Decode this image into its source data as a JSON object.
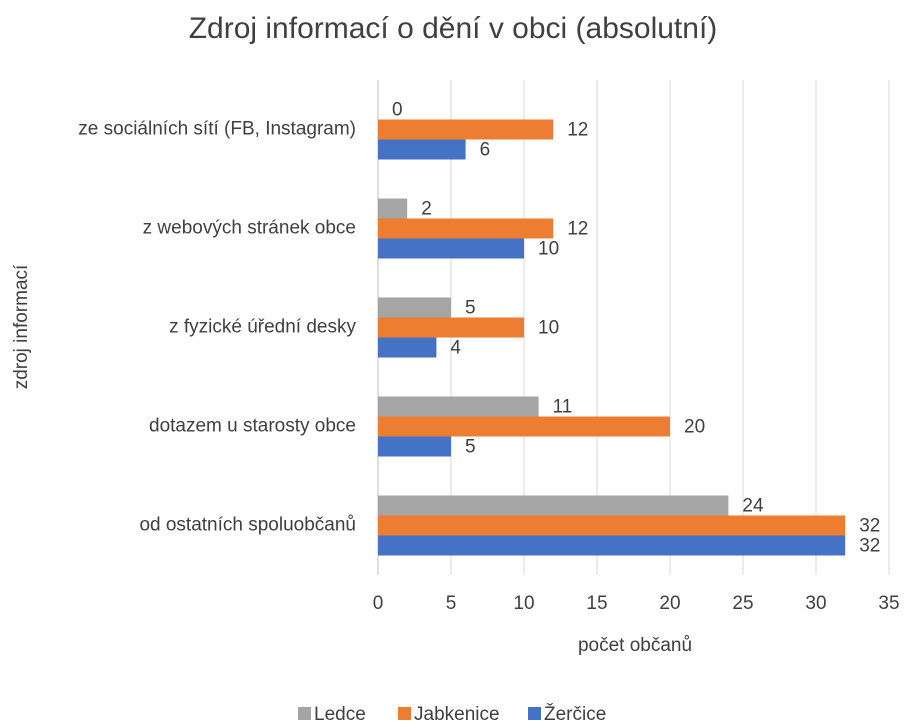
{
  "chart_data": {
    "type": "hbar",
    "title": "Zdroj informací o dění v obci (absolutní)",
    "x_label": "počet občanů",
    "y_label": "zdroj informací",
    "categories": [
      "ze sociálních sítí (FB, Instagram)",
      "z webových stránek obce",
      "z fyzické úřední desky",
      "dotazem u starosty obce",
      "od ostatních spoluobčanů"
    ],
    "series": [
      {
        "name": "Ledce",
        "color": "#a5a5a5",
        "values": [
          0,
          2,
          5,
          11,
          24
        ]
      },
      {
        "name": "Jabkenice",
        "color": "#ed7d31",
        "values": [
          12,
          12,
          10,
          20,
          32
        ]
      },
      {
        "name": "Žerčice",
        "color": "#4472c4",
        "values": [
          6,
          10,
          4,
          5,
          32
        ]
      }
    ],
    "xlim": [
      0,
      35
    ],
    "xticks": [
      0,
      5,
      10,
      15,
      20,
      25,
      30,
      35
    ],
    "grid": true,
    "legend": "bottom"
  }
}
